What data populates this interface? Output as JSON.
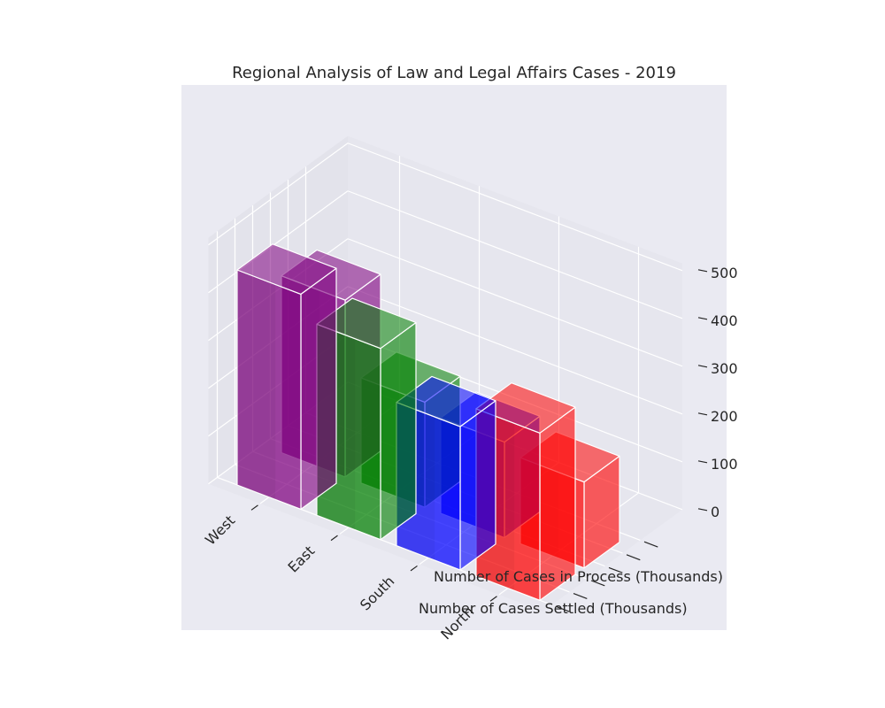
{
  "chart_data": {
    "type": "bar",
    "subtype": "3d-bar",
    "title": "Regional Analysis of Law and Legal Affairs Cases - 2019",
    "categories": [
      "West",
      "East",
      "South",
      "North"
    ],
    "y_categories": [
      "Number of Cases Settled (Thousands)",
      "Number of Cases in Process (Thousands)"
    ],
    "z_ticks": [
      0,
      100,
      200,
      300,
      400,
      500
    ],
    "zlim": [
      0,
      500
    ],
    "grid": true,
    "legend": "none",
    "colors": {
      "West": "#800080",
      "East": "#008000",
      "South": "#0000ff",
      "North": "#ff0000"
    },
    "background": "#eaeaf2",
    "values": [
      [
        450,
        370
      ],
      [
        400,
        220
      ],
      [
        300,
        200
      ],
      [
        350,
        180
      ]
    ]
  }
}
